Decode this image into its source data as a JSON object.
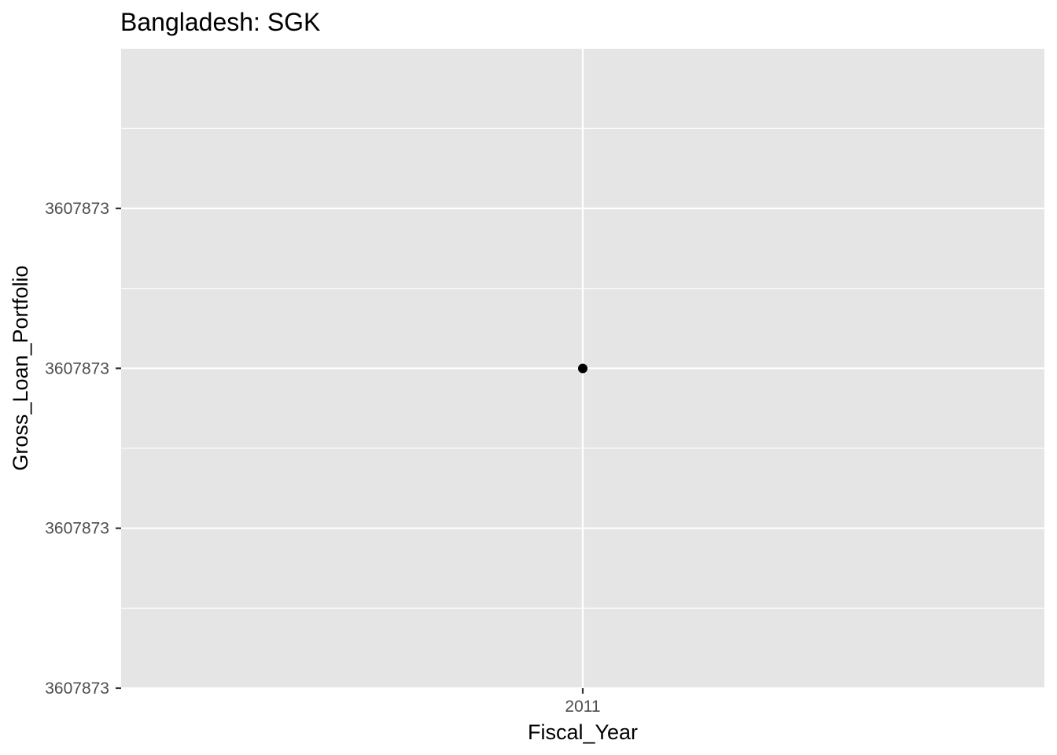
{
  "chart_data": {
    "type": "scatter",
    "title": "Bangladesh:  SGK",
    "xlabel": "Fiscal_Year",
    "ylabel": "Gross_Loan_Portfolio",
    "x_ticks": [
      "2011"
    ],
    "y_ticks": [
      "3607873",
      "3607873",
      "3607873",
      "3607873"
    ],
    "points": [
      {
        "x": "2011",
        "y": 3607873
      }
    ],
    "grid": true,
    "legend": "none",
    "colors": {
      "panel_background": "#e5e5e5",
      "grid": "#ffffff",
      "point": "#000000",
      "tick_text": "#4d4d4d",
      "tick_mark": "#333333"
    }
  }
}
